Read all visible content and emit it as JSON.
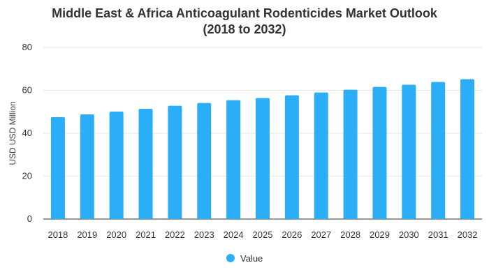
{
  "chart_data": {
    "type": "bar",
    "title": "Middle East & Africa Anticoagulant Rodenticides Market Outlook",
    "subtitle": "(2018 to 2032)",
    "xlabel": "",
    "ylabel": "USD USD Million",
    "categories": [
      "2018",
      "2019",
      "2020",
      "2021",
      "2022",
      "2023",
      "2024",
      "2025",
      "2026",
      "2027",
      "2028",
      "2029",
      "2030",
      "2031",
      "2032"
    ],
    "series": [
      {
        "name": "Value",
        "color": "#2BAEF5",
        "values": [
          47.5,
          48.8,
          50.1,
          51.4,
          52.8,
          54.1,
          55.4,
          56.4,
          57.7,
          59.0,
          60.3,
          61.6,
          62.6,
          63.9,
          65.2
        ]
      }
    ],
    "ylim": [
      0,
      80
    ],
    "yticks": [
      0,
      20,
      40,
      60,
      80
    ],
    "grid": true,
    "legend": "bottom-center"
  }
}
